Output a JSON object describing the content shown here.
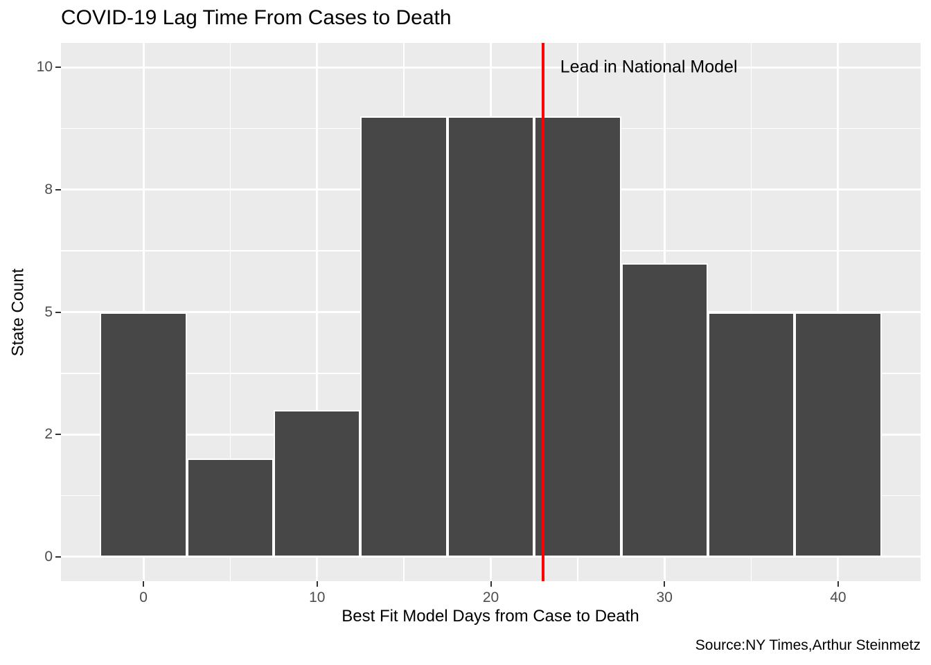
{
  "chart_data": {
    "type": "bar",
    "subtype": "histogram",
    "title": "COVID-19 Lag Time From Cases to Death",
    "xlabel": "Best Fit Model Days from Case to Death",
    "ylabel": "State Count",
    "caption": "Source:NY Times,Arthur Steinmetz",
    "bin_width": 5,
    "bin_centers": [
      0,
      5,
      10,
      15,
      20,
      25,
      30,
      35,
      40
    ],
    "values": [
      5,
      2,
      3,
      9,
      9,
      9,
      6,
      5,
      5
    ],
    "xlim": [
      -4.75,
      44.75
    ],
    "ylim": [
      -0.5,
      10.5
    ],
    "x_ticks": [
      {
        "value": 0,
        "label": "0"
      },
      {
        "value": 10,
        "label": "10"
      },
      {
        "value": 20,
        "label": "20"
      },
      {
        "value": 30,
        "label": "30"
      },
      {
        "value": 40,
        "label": "40"
      }
    ],
    "y_ticks": [
      {
        "value": 0,
        "label": "0"
      },
      {
        "value": 2.5,
        "label": "2"
      },
      {
        "value": 5,
        "label": "5"
      },
      {
        "value": 7.5,
        "label": "8"
      },
      {
        "value": 10,
        "label": "10"
      }
    ],
    "x_minor": [
      5,
      15,
      25,
      35
    ],
    "y_minor": [
      1.25,
      3.75,
      6.25,
      8.75
    ],
    "grid": "on",
    "legend": "none",
    "vline": {
      "x": 23,
      "label": "Lead in National Model"
    },
    "annotation_pos": {
      "x": 24.0,
      "y": 10
    },
    "colors": {
      "bar_fill": "#474747",
      "bar_border": "#FFFFFF",
      "panel_bg": "#EBEBEB",
      "gridline": "#FFFFFF",
      "vline": "#FF0000",
      "tick_label": "#4D4D4D",
      "tick_mark": "#333333",
      "text": "#000000",
      "page_bg": "#FFFFFF"
    }
  }
}
